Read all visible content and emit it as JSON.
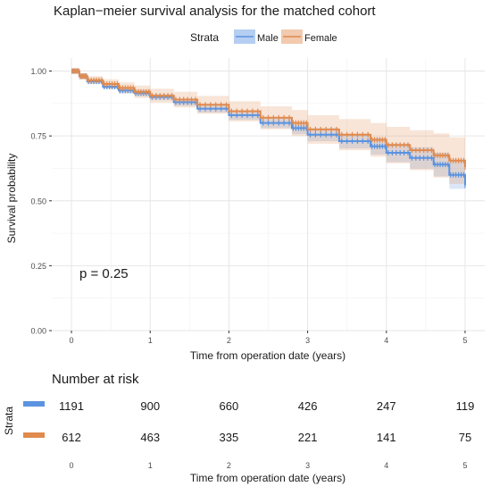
{
  "title": "Kaplan−meier survival analysis for the matched cohort",
  "legend": {
    "title": "Strata",
    "items": [
      {
        "label": "Male",
        "color": "#5B93E0"
      },
      {
        "label": "Female",
        "color": "#E08A4E"
      }
    ]
  },
  "pvalue": "p = 0.25",
  "risk_table": {
    "title": "Number at risk",
    "strata_label": "Strata",
    "xlabel": "Time from operation date (years)",
    "times": [
      0,
      1,
      2,
      3,
      4,
      5
    ],
    "rows": [
      {
        "strata": "Male",
        "color": "#5B93E0",
        "values": [
          1191,
          900,
          660,
          426,
          247,
          119
        ]
      },
      {
        "strata": "Female",
        "color": "#E08A4E",
        "values": [
          612,
          463,
          335,
          221,
          141,
          75
        ]
      }
    ]
  },
  "chart_data": {
    "type": "line",
    "title": "Kaplan−meier survival analysis for the matched cohort",
    "xlabel": "Time from operation date (years)",
    "ylabel": "Survival probability",
    "xlim": [
      -0.25,
      5.25
    ],
    "ylim": [
      0,
      1.05
    ],
    "xticks": [
      0,
      1,
      2,
      3,
      4,
      5
    ],
    "yticks": [
      0.0,
      0.25,
      0.5,
      0.75,
      1.0
    ],
    "ytick_labels": [
      "0.00",
      "0.25",
      "0.50",
      "0.75",
      "1.00"
    ],
    "grid": true,
    "legend_position": "top",
    "series": [
      {
        "name": "Male",
        "color": "#5B93E0",
        "x": [
          0,
          0.1,
          0.2,
          0.4,
          0.6,
          0.8,
          1.0,
          1.3,
          1.6,
          2.0,
          2.4,
          2.8,
          3.0,
          3.4,
          3.8,
          4.0,
          4.3,
          4.6,
          4.8,
          5.0
        ],
        "y": [
          1.0,
          0.98,
          0.96,
          0.94,
          0.925,
          0.915,
          0.9,
          0.88,
          0.855,
          0.83,
          0.8,
          0.78,
          0.755,
          0.73,
          0.71,
          0.685,
          0.665,
          0.64,
          0.6,
          0.56
        ],
        "ci_lower": [
          1.0,
          0.972,
          0.952,
          0.932,
          0.915,
          0.903,
          0.888,
          0.866,
          0.84,
          0.812,
          0.78,
          0.757,
          0.73,
          0.702,
          0.678,
          0.649,
          0.624,
          0.594,
          0.546,
          0.49
        ],
        "ci_upper": [
          1.0,
          0.988,
          0.968,
          0.948,
          0.935,
          0.927,
          0.912,
          0.894,
          0.87,
          0.848,
          0.82,
          0.803,
          0.78,
          0.758,
          0.742,
          0.721,
          0.706,
          0.686,
          0.654,
          0.63
        ]
      },
      {
        "name": "Female",
        "color": "#E08A4E",
        "x": [
          0,
          0.1,
          0.2,
          0.4,
          0.6,
          0.8,
          1.0,
          1.3,
          1.6,
          2.0,
          2.4,
          2.8,
          3.0,
          3.4,
          3.8,
          4.0,
          4.3,
          4.6,
          4.8,
          5.0
        ],
        "y": [
          1.0,
          0.98,
          0.965,
          0.95,
          0.935,
          0.92,
          0.905,
          0.89,
          0.87,
          0.845,
          0.82,
          0.8,
          0.775,
          0.755,
          0.735,
          0.715,
          0.695,
          0.675,
          0.655,
          0.63
        ],
        "ci_lower": [
          1.0,
          0.968,
          0.95,
          0.932,
          0.914,
          0.896,
          0.878,
          0.86,
          0.836,
          0.806,
          0.776,
          0.75,
          0.72,
          0.695,
          0.67,
          0.645,
          0.618,
          0.59,
          0.565,
          0.535
        ],
        "ci_upper": [
          1.0,
          0.992,
          0.98,
          0.968,
          0.956,
          0.944,
          0.932,
          0.92,
          0.904,
          0.884,
          0.864,
          0.85,
          0.83,
          0.815,
          0.8,
          0.785,
          0.772,
          0.76,
          0.745,
          0.725
        ]
      }
    ]
  }
}
